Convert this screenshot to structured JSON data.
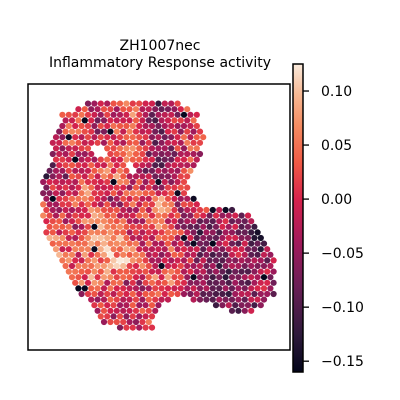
{
  "chart_data": {
    "type": "scatter",
    "title_line1": "ZH1007nec",
    "title_line2": "Inflammatory Response activity",
    "colorbar": {
      "vmin": -0.16,
      "vmax": 0.125,
      "ticks": [
        0.1,
        0.05,
        0.0,
        -0.05,
        -0.1,
        -0.15
      ],
      "tick_labels": [
        "0.10",
        "0.05",
        "0.00",
        "−0.05",
        "−0.10",
        "−0.15"
      ],
      "colormap": "rocket"
    },
    "spot_values": {
      "cross_sections": [
        {
          "y": 0.24,
          "values": [
            -0.06,
            0.02,
            -0.03,
            0.04,
            -0.08,
            0.01,
            -0.02,
            0.03,
            -0.05
          ]
        },
        {
          "y": 0.33,
          "values": [
            -0.09,
            -0.04,
            0.03,
            0.06,
            -0.02,
            -0.07,
            0.01,
            0.05,
            -0.03,
            -0.06,
            0.02
          ]
        },
        {
          "y": 0.45,
          "values": [
            0.04,
            -0.02,
            0.06,
            -0.05,
            0.02,
            0.07,
            -0.03,
            0.04,
            -0.08,
            0.01,
            -0.04
          ]
        },
        {
          "y": 0.57,
          "values": [
            0.06,
            0.03,
            -0.01,
            0.05,
            0.08,
            0.02,
            -0.04,
            0.03,
            0.01,
            -0.06,
            -0.09,
            -0.03,
            -0.07,
            -0.12,
            -0.05
          ]
        },
        {
          "y": 0.69,
          "values": [
            0.08,
            0.05,
            0.02,
            0.06,
            0.09,
            0.04,
            -0.02,
            0.03,
            -0.05,
            -0.08,
            -0.03,
            -0.06,
            -0.02
          ]
        },
        {
          "y": 0.78,
          "values": [
            0.03,
            -0.02,
            0.05,
            0.02,
            -0.04,
            0.06,
            0.01,
            -0.07,
            -0.1,
            -0.05,
            -0.03
          ]
        },
        {
          "y": 0.88,
          "values": [
            -0.05,
            -0.02,
            0.01,
            -0.08,
            -0.04
          ]
        }
      ]
    },
    "grid": false,
    "legend": "colorbar-right"
  }
}
